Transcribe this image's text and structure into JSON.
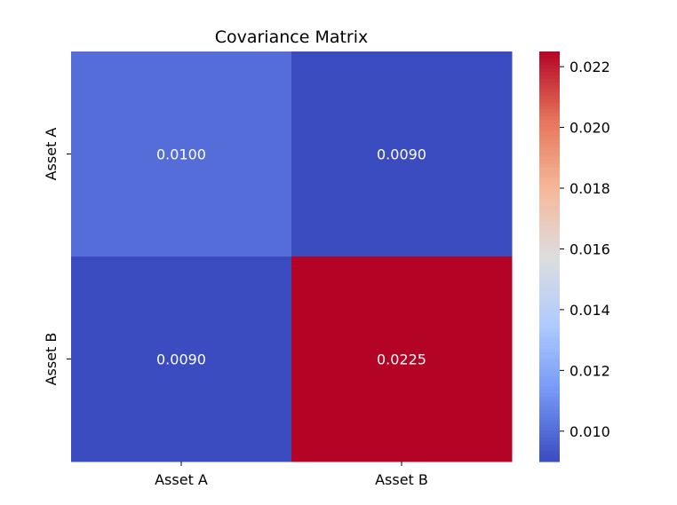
{
  "chart_data": {
    "type": "heatmap",
    "title": "Covariance Matrix",
    "xlabel": "",
    "ylabel": "",
    "x_categories": [
      "Asset A",
      "Asset B"
    ],
    "y_categories": [
      "Asset A",
      "Asset B"
    ],
    "values": [
      [
        0.01,
        0.009
      ],
      [
        0.009,
        0.0225
      ]
    ],
    "cell_labels": [
      [
        "0.0100",
        "0.0090"
      ],
      [
        "0.0090",
        "0.0225"
      ]
    ],
    "colormap": "coolwarm",
    "color_range": [
      0.009,
      0.0225
    ],
    "colorbar": {
      "position": "right",
      "ticks": [
        0.01,
        0.012,
        0.014,
        0.016,
        0.018,
        0.02,
        0.022
      ],
      "tick_labels": [
        "0.010",
        "0.012",
        "0.014",
        "0.016",
        "0.018",
        "0.020",
        "0.022"
      ]
    },
    "colormap_stops": [
      "#3b4cc0",
      "#7396f5",
      "#b0cbff",
      "#dddddd",
      "#f6b799",
      "#e7745b",
      "#b40426"
    ],
    "cell_label_color": "#ffffff"
  }
}
